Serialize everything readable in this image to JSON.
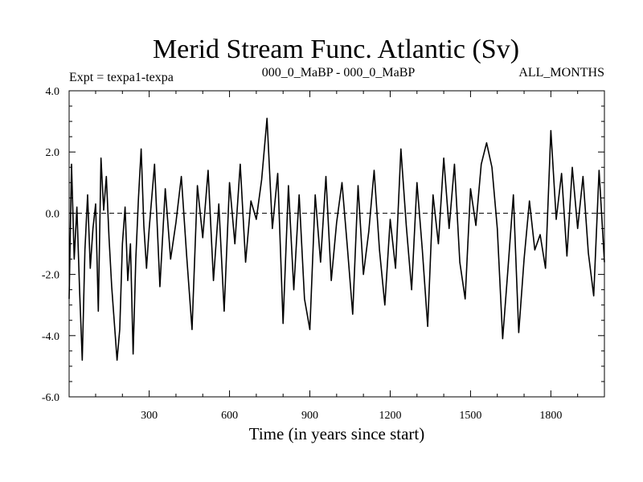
{
  "chart_data": {
    "type": "line",
    "title": "Merid Stream Func. Atlantic (Sv)",
    "subtitle_left": "Expt = texpa1-texpa",
    "subtitle_center": "000_0_MaBP - 000_0_MaBP",
    "subtitle_right": "ALL_MONTHS",
    "xlabel": "Time (in years since start)",
    "ylabel": "",
    "xlim": [
      1,
      2000
    ],
    "ylim": [
      -6.0,
      4.0
    ],
    "x_ticks": [
      300,
      600,
      900,
      1200,
      1500,
      1800
    ],
    "x_tick_labels": [
      "300",
      "600",
      "900",
      "1200",
      "1500",
      "1800"
    ],
    "y_ticks": [
      -6.0,
      -4.0,
      -2.0,
      0.0,
      2.0,
      4.0
    ],
    "y_tick_labels": [
      "-6.0",
      "-4.0",
      "-2.0",
      "0.0",
      "2.0",
      "4.0"
    ],
    "reference_line": 0.0,
    "grid": false,
    "line_color": "#000000",
    "series": [
      {
        "values_note": "",
        "x": [
          1,
          10,
          20,
          30,
          40,
          50,
          60,
          70,
          80,
          90,
          100,
          110,
          120,
          130,
          140,
          150,
          160,
          170,
          180,
          190,
          200,
          210,
          220,
          230,
          240,
          250,
          260,
          270,
          280,
          290,
          300,
          320,
          340,
          360,
          380,
          400,
          420,
          440,
          460,
          480,
          500,
          520,
          540,
          560,
          580,
          600,
          620,
          640,
          660,
          680,
          700,
          720,
          740,
          760,
          780,
          800,
          820,
          840,
          860,
          880,
          900,
          920,
          940,
          960,
          980,
          1000,
          1020,
          1040,
          1060,
          1080,
          1100,
          1120,
          1140,
          1160,
          1180,
          1200,
          1220,
          1240,
          1260,
          1280,
          1300,
          1320,
          1340,
          1360,
          1380,
          1400,
          1420,
          1440,
          1460,
          1480,
          1500,
          1520,
          1540,
          1560,
          1580,
          1600,
          1620,
          1640,
          1660,
          1680,
          1700,
          1720,
          1740,
          1760,
          1780,
          1800,
          1820,
          1840,
          1860,
          1880,
          1900,
          1920,
          1940,
          1960,
          1980,
          2000
        ],
        "values": [
          -2.8,
          1.6,
          -1.5,
          0.2,
          -2.5,
          -4.8,
          -1.2,
          0.6,
          -1.8,
          -0.5,
          0.3,
          -3.2,
          1.8,
          0.1,
          1.2,
          -0.8,
          -2.4,
          -3.6,
          -4.8,
          -3.8,
          -1.0,
          0.2,
          -2.2,
          -1.0,
          -4.6,
          -1.5,
          0.5,
          2.1,
          -0.4,
          -1.8,
          -0.5,
          1.6,
          -2.4,
          0.8,
          -1.5,
          -0.3,
          1.2,
          -1.4,
          -3.8,
          0.9,
          -0.8,
          1.4,
          -2.2,
          0.3,
          -3.2,
          1.0,
          -1.0,
          1.6,
          -1.6,
          0.4,
          -0.2,
          1.1,
          3.1,
          -0.5,
          1.3,
          -3.6,
          0.9,
          -2.5,
          0.6,
          -2.8,
          -3.8,
          0.6,
          -1.6,
          1.2,
          -2.2,
          -0.3,
          1.0,
          -1.1,
          -3.3,
          0.9,
          -2.0,
          -0.6,
          1.4,
          -1.2,
          -3.0,
          -0.2,
          -1.8,
          2.1,
          -0.4,
          -2.5,
          1.0,
          -1.2,
          -3.7,
          0.6,
          -1.0,
          1.8,
          -0.5,
          1.6,
          -1.6,
          -2.8,
          0.8,
          -0.4,
          1.6,
          2.3,
          1.5,
          -0.5,
          -4.1,
          -1.8,
          0.6,
          -3.9,
          -1.5,
          0.4,
          -1.2,
          -0.7,
          -1.8,
          2.7,
          -0.2,
          1.3,
          -1.4,
          1.5,
          -0.5,
          1.2,
          -1.3,
          -2.7,
          1.4,
          -1.6
        ]
      }
    ]
  }
}
